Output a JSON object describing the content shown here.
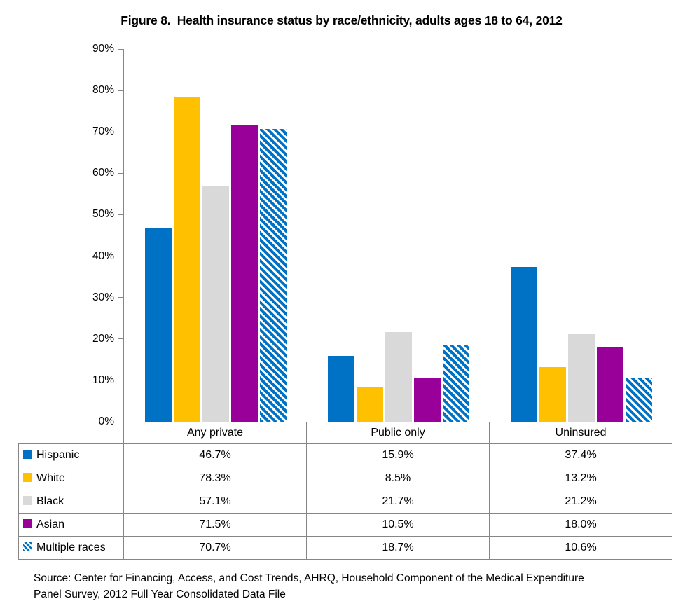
{
  "title": "Figure 8.  Health insurance status by race/ethnicity, adults ages 18 to 64, 2012",
  "chart_data": {
    "type": "bar",
    "categories": [
      "Any private",
      "Public only",
      "Uninsured"
    ],
    "series": [
      {
        "name": "Hispanic",
        "color": "#0072C6",
        "pattern": "solid",
        "values": [
          46.7,
          15.9,
          37.4
        ],
        "display": [
          "46.7%",
          "15.9%",
          "37.4%"
        ]
      },
      {
        "name": "White",
        "color": "#FFC000",
        "pattern": "solid",
        "values": [
          78.3,
          8.5,
          13.2
        ],
        "display": [
          "78.3%",
          "8.5%",
          "13.2%"
        ]
      },
      {
        "name": "Black",
        "color": "#D9D9D9",
        "pattern": "solid",
        "values": [
          57.1,
          21.7,
          21.2
        ],
        "display": [
          "57.1%",
          "21.7%",
          "21.2%"
        ]
      },
      {
        "name": "Asian",
        "color": "#990099",
        "pattern": "solid",
        "values": [
          71.5,
          10.5,
          18.0
        ],
        "display": [
          "71.5%",
          "10.5%",
          "18.0%"
        ]
      },
      {
        "name": "Multiple races",
        "color": "#0072C6",
        "pattern": "diagonal-hatch",
        "values": [
          70.7,
          18.7,
          10.6
        ],
        "display": [
          "70.7%",
          "18.7%",
          "10.6%"
        ]
      }
    ],
    "title": "Figure 8.  Health insurance status by race/ethnicity, adults ages 18 to 64, 2012",
    "xlabel": "",
    "ylabel": "",
    "ylim": [
      0,
      90
    ],
    "ytick_step": 10,
    "ytick_labels": [
      "0%",
      "10%",
      "20%",
      "30%",
      "40%",
      "50%",
      "60%",
      "70%",
      "80%",
      "90%"
    ],
    "grid": false,
    "legend_position": "table-left",
    "axis_color": "#868686"
  },
  "source": {
    "line1": "Source: Center for Financing, Access, and Cost Trends, AHRQ, Household Component of the Medical Expenditure",
    "line2": "Panel Survey, 2012 Full Year Consolidated Data File"
  }
}
